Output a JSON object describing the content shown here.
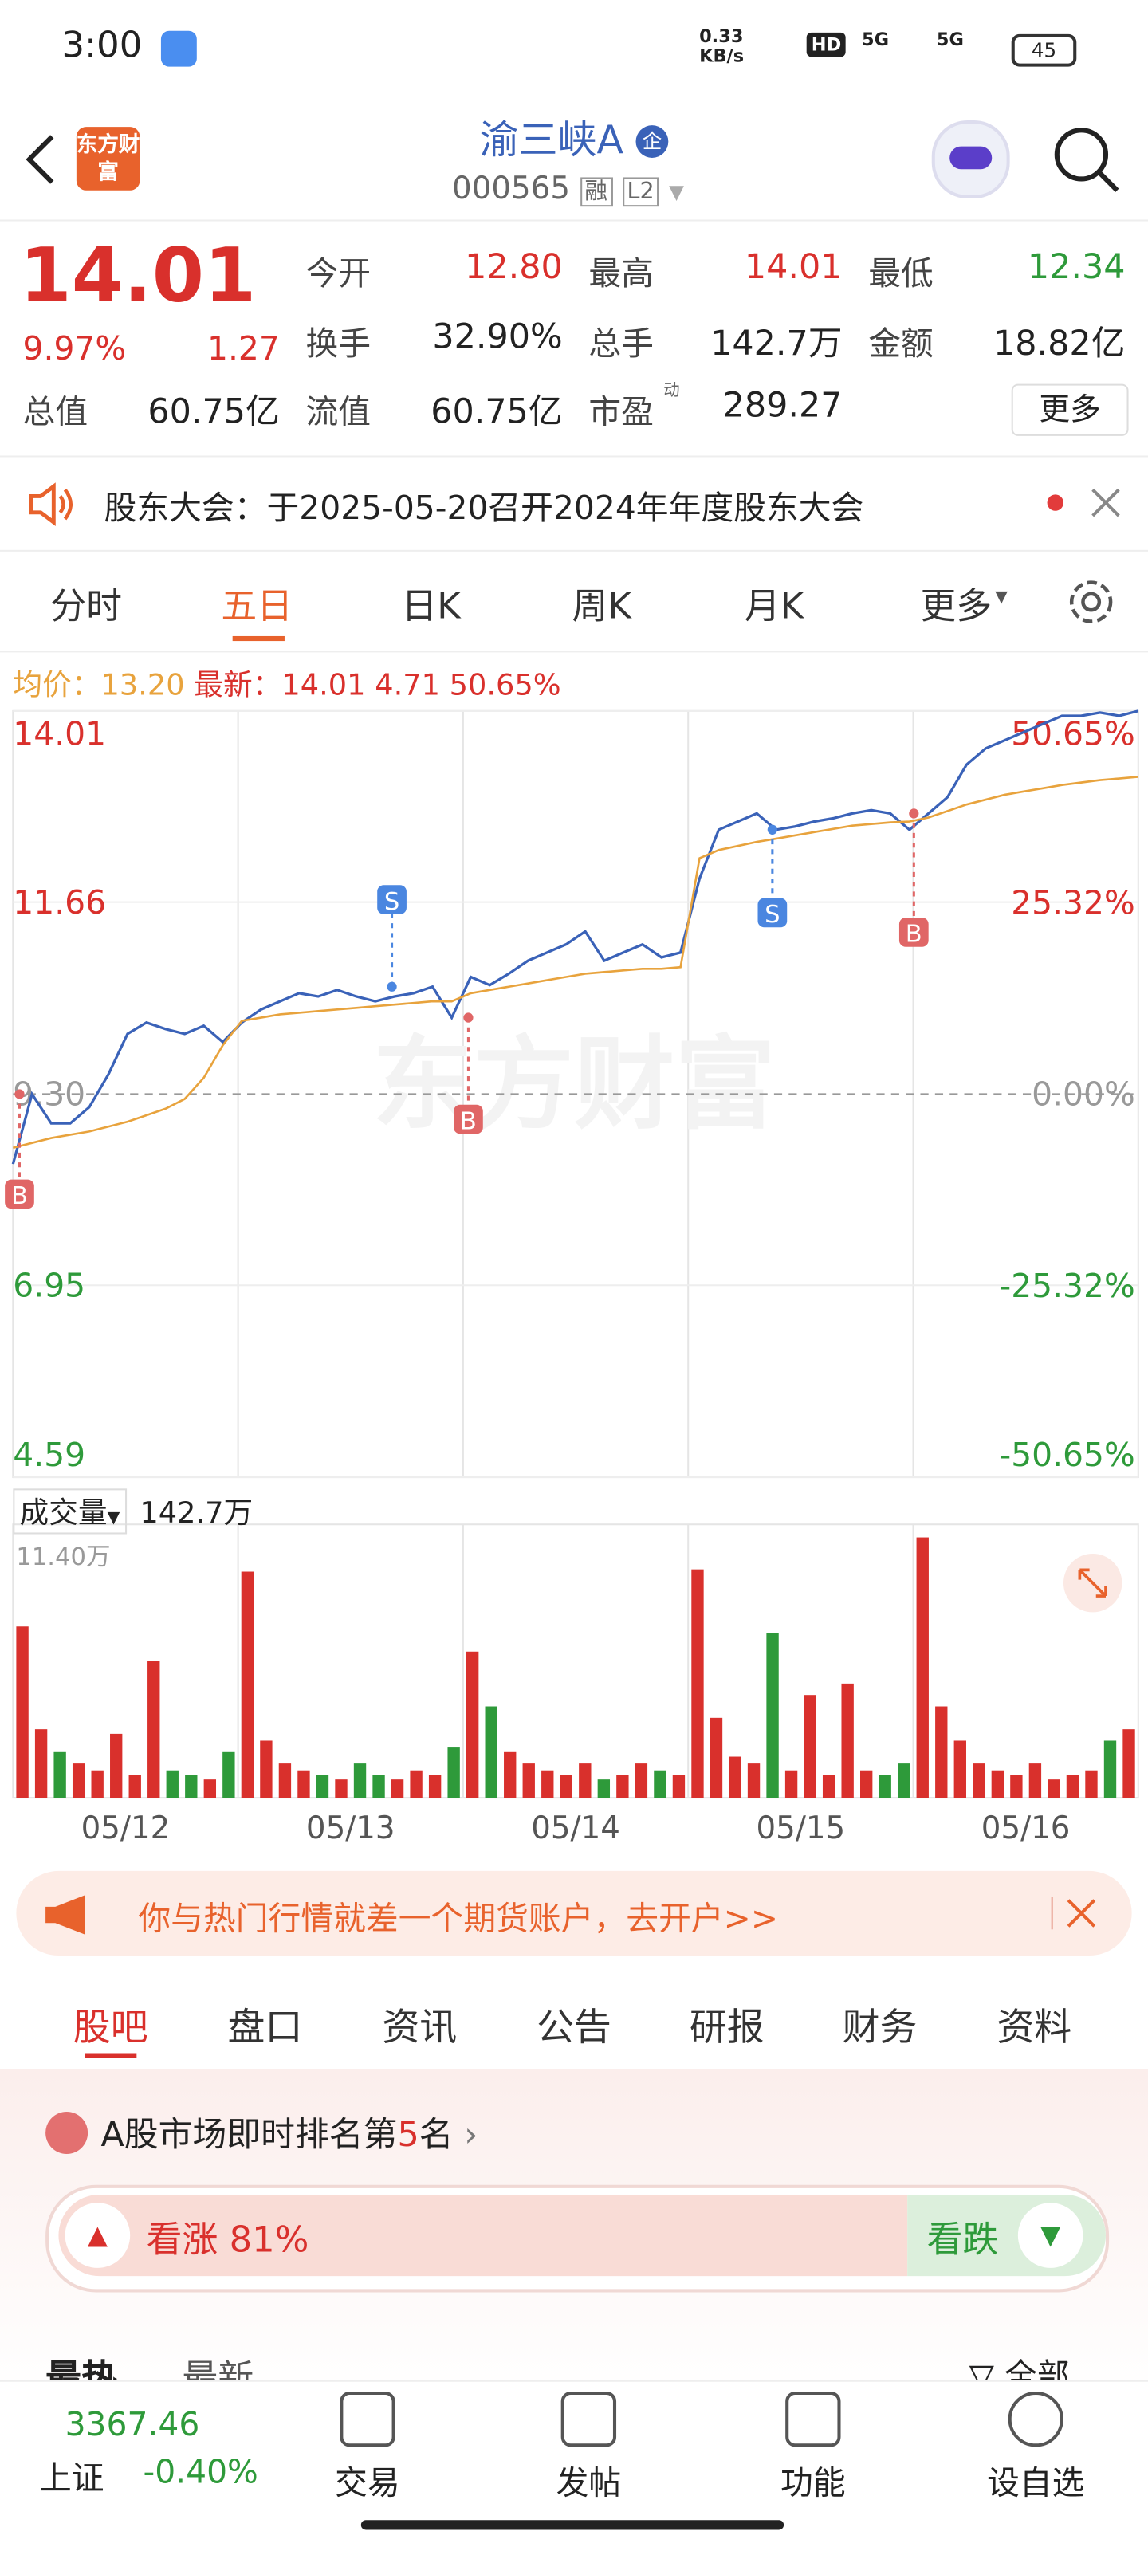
{
  "status": {
    "time": "3:00",
    "speed": "0.33",
    "speed_unit": "KB/s",
    "net1": "5G",
    "net2": "5G",
    "battery": "45"
  },
  "header": {
    "logo": "东方财富",
    "title": "渝三峡A",
    "code": "000565",
    "badge1": "融",
    "badge2": "L2"
  },
  "quote": {
    "price": "14.01",
    "pct": "9.97%",
    "change": "1.27",
    "stats": [
      {
        "label": "今开",
        "value": "12.80"
      },
      {
        "label": "最高",
        "value": "14.01"
      },
      {
        "label": "最低",
        "value": "12.34"
      },
      {
        "label": "换手",
        "value": "32.90%"
      },
      {
        "label": "总手",
        "value": "142.7万"
      },
      {
        "label": "金额",
        "value": "18.82亿"
      },
      {
        "label": "总值",
        "value": "60.75亿"
      },
      {
        "label": "流值",
        "value": "60.75亿"
      },
      {
        "label": "市盈",
        "value": "289.27",
        "sup": "动"
      }
    ],
    "more": "更多"
  },
  "notice": "股东大会：于2025-05-20召开2024年年度股东大会",
  "tabs": [
    "分时",
    "五日",
    "日K",
    "周K",
    "月K",
    "更多"
  ],
  "info": {
    "avg_label": "均价：",
    "avg": "13.20",
    "last_label": "最新：",
    "last": "14.01",
    "chg": "4.71",
    "pct": "50.65%"
  },
  "chart_data": {
    "type": "line",
    "watermark": "东方财富",
    "days": [
      "05/12",
      "05/13",
      "05/14",
      "05/15",
      "05/16"
    ],
    "ylim": [
      4.59,
      14.01
    ],
    "yticks": [
      14.01,
      11.66,
      {
        "value": 9.3,
        "label": "9.30"
      },
      6.95,
      4.59
    ],
    "y2lim": [
      -50.65,
      50.65
    ],
    "y2ticks": [
      {
        "value": 50.65,
        "label": "50.65%"
      },
      {
        "value": 25.32,
        "label": "25.32%"
      },
      {
        "value": 0,
        "label": "0.00%"
      },
      {
        "value": -25.32,
        "label": "-25.32%"
      },
      {
        "value": -50.65,
        "label": "-50.65%"
      }
    ],
    "up_color": "#d9302c",
    "down_color": "#2e9a3a",
    "series": [
      {
        "name": "最新",
        "color": "#3a62b8",
        "values": [
          8.44,
          9.3,
          8.94,
          8.94,
          9.14,
          9.54,
          10.04,
          10.18,
          10.1,
          10.04,
          10.14,
          9.94,
          10.18,
          10.34,
          10.44,
          10.54,
          10.5,
          10.58,
          10.5,
          10.44,
          10.5,
          10.54,
          10.62,
          10.24,
          10.74,
          10.64,
          10.78,
          10.94,
          11.04,
          11.14,
          11.3,
          10.94,
          11.04,
          11.14,
          10.98,
          11.04,
          11.95,
          12.55,
          12.65,
          12.75,
          12.55,
          12.59,
          12.65,
          12.69,
          12.75,
          12.79,
          12.75,
          12.55,
          12.75,
          12.95,
          13.35,
          13.55,
          13.65,
          13.75,
          13.85,
          13.95,
          13.95,
          13.99,
          13.95,
          14.01
        ]
      },
      {
        "name": "均价",
        "color": "#e8a33d",
        "values": [
          8.64,
          8.7,
          8.76,
          8.8,
          8.84,
          8.9,
          8.96,
          9.04,
          9.12,
          9.24,
          9.5,
          9.9,
          10.2,
          10.24,
          10.28,
          10.3,
          10.32,
          10.34,
          10.36,
          10.38,
          10.4,
          10.42,
          10.44,
          10.44,
          10.54,
          10.58,
          10.62,
          10.66,
          10.7,
          10.74,
          10.78,
          10.8,
          10.82,
          10.84,
          10.84,
          10.86,
          12.2,
          12.3,
          12.35,
          12.4,
          12.44,
          12.48,
          12.52,
          12.56,
          12.6,
          12.62,
          12.64,
          12.65,
          12.7,
          12.78,
          12.86,
          12.92,
          12.98,
          13.02,
          13.06,
          13.1,
          13.13,
          13.16,
          13.18,
          13.2
        ]
      }
    ],
    "trades": [
      "B",
      "S",
      "B",
      "S",
      "B"
    ],
    "volume": {
      "label": "成交量",
      "total": "142.7万",
      "ylim": [
        0,
        11.4
      ],
      "ytick": {
        "value": 11.4,
        "label": "11.40万"
      },
      "values": [
        7.5,
        3.0,
        2.0,
        1.5,
        1.2,
        2.8,
        1.0,
        6.0,
        1.2,
        1.0,
        0.8,
        2.0,
        9.9,
        2.5,
        1.5,
        1.2,
        1.0,
        0.8,
        1.5,
        1.0,
        0.8,
        1.2,
        1.0,
        2.2,
        6.4,
        4.0,
        2.0,
        1.5,
        1.2,
        1.0,
        1.5,
        0.8,
        1.0,
        1.5,
        1.2,
        1.0,
        10.0,
        3.5,
        1.8,
        1.5,
        7.2,
        1.2,
        4.5,
        1.0,
        5.0,
        1.2,
        1.0,
        1.5,
        11.4,
        4.0,
        2.5,
        1.5,
        1.2,
        1.0,
        1.5,
        0.8,
        1.0,
        1.2,
        2.5,
        3.0
      ]
    }
  },
  "ad": "你与热门行情就差一个期货账户，去开户>>",
  "sections": [
    "股吧",
    "盘口",
    "资讯",
    "公告",
    "研报",
    "财务",
    "资料"
  ],
  "rank": {
    "prefix": "A股市场即时排名第",
    "num": "5",
    "suffix": "名"
  },
  "sentiment": {
    "bull": "看涨",
    "bull_pct": 81,
    "value_labels": "81%",
    "bear": "看跌"
  },
  "feed": {
    "hot": "最热",
    "new": "最新",
    "all": "全部"
  },
  "nav": {
    "index": "3367.46",
    "index_name": "上证",
    "index_pct": "-0.40%",
    "items": [
      "交易",
      "发帖",
      "功能",
      "设自选"
    ]
  }
}
